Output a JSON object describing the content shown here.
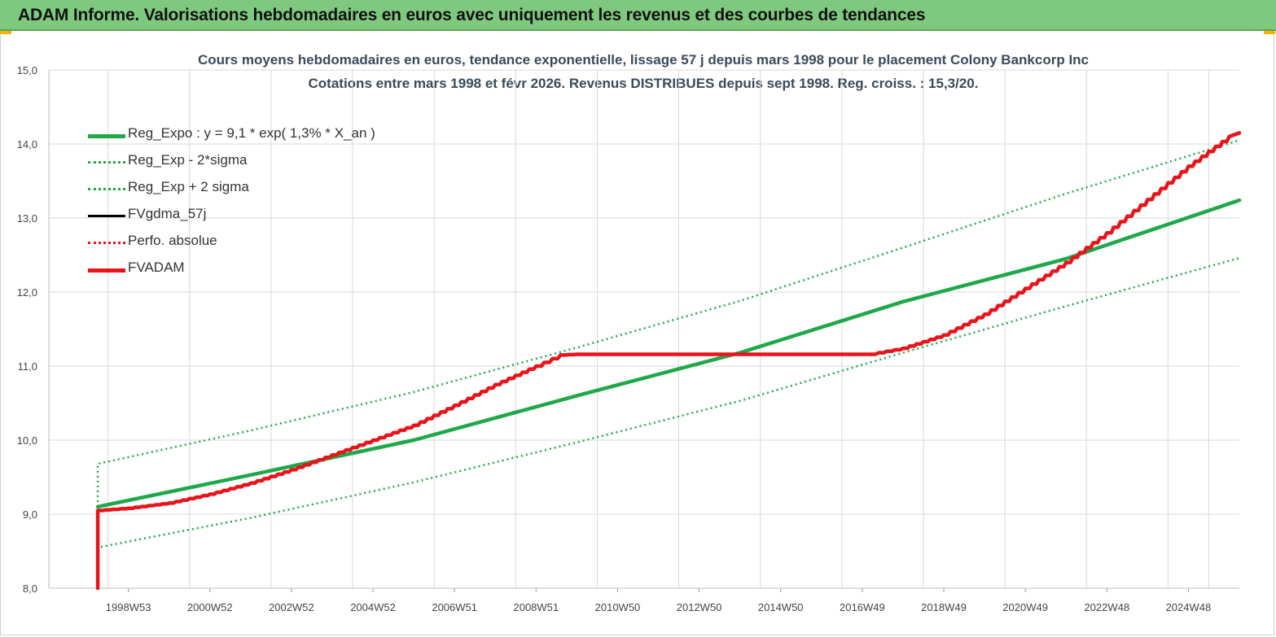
{
  "header": {
    "title": "ADAM Informe. Valorisations hebdomadaires en euros avec uniquement les revenus et des courbes de tendances"
  },
  "colors": {
    "header_bg": "#7fc97f",
    "reg_green": "#1fa84a",
    "dotted_green": "#1fa84a",
    "fvadam_red": "#e8141b",
    "perfo_red": "#e8141b",
    "fvgdma_black": "#000000",
    "grid": "#d9d9d9"
  },
  "chart_data": {
    "type": "line",
    "title": "Cours moyens hebdomadaires en euros, tendance exponentielle, lissage 57 j depuis mars 1998 pour le placement Colony Bankcorp Inc",
    "subtitle": "Cotations entre mars 1998 et févr 2026. Revenus DISTRIBUES depuis sept 1998. Reg. croiss. : 15,3/20.",
    "xlabel": "",
    "ylabel": "",
    "ylim": [
      8.0,
      15.0
    ],
    "xlim": [
      1996.05,
      2025.25
    ],
    "yticks": [
      "8,0",
      "9,0",
      "10,0",
      "11,0",
      "12,0",
      "13,0",
      "14,0",
      "15,0"
    ],
    "xticks": [
      {
        "label": "1998W53",
        "x": 1998.0
      },
      {
        "label": "2000W52",
        "x": 2000.0
      },
      {
        "label": "2002W52",
        "x": 2002.0
      },
      {
        "label": "2004W52",
        "x": 2004.0
      },
      {
        "label": "2006W51",
        "x": 2006.0
      },
      {
        "label": "2008W51",
        "x": 2008.0
      },
      {
        "label": "2010W50",
        "x": 2010.0
      },
      {
        "label": "2012W50",
        "x": 2012.0
      },
      {
        "label": "2014W50",
        "x": 2014.0
      },
      {
        "label": "2016W49",
        "x": 2016.0
      },
      {
        "label": "2018W49",
        "x": 2018.0
      },
      {
        "label": "2020W49",
        "x": 2020.0
      },
      {
        "label": "2022W48",
        "x": 2022.0
      },
      {
        "label": "2024W48",
        "x": 2024.0
      }
    ],
    "grid": true,
    "legend_position": "top-left",
    "series": [
      {
        "name": "Reg_Expo : y = 9,1 * exp( 1,3% *  X_an )",
        "style": "solid-thick",
        "color": "#1fa84a",
        "x": [
          1997.25,
          2001.0,
          2005.0,
          2009.0,
          2013.0,
          2017.0,
          2021.0,
          2025.25
        ],
        "y": [
          9.1,
          9.53,
          10.0,
          10.6,
          11.18,
          11.87,
          12.45,
          13.24
        ]
      },
      {
        "name": "Reg_Exp - 2*sigma",
        "style": "dotted",
        "color": "#1fa84a",
        "x": [
          1997.25,
          1997.25,
          2001.0,
          2005.0,
          2009.0,
          2013.0,
          2017.0,
          2021.0,
          2025.25
        ],
        "y": [
          9.1,
          8.55,
          8.95,
          9.43,
          9.97,
          10.53,
          11.18,
          11.81,
          12.46
        ]
      },
      {
        "name": "Reg_Exp + 2 sigma",
        "style": "dotted",
        "color": "#1fa84a",
        "x": [
          1997.25,
          1997.25,
          2001.0,
          2005.0,
          2009.0,
          2013.0,
          2017.0,
          2021.0,
          2025.25
        ],
        "y": [
          9.1,
          9.68,
          10.13,
          10.65,
          11.25,
          11.88,
          12.6,
          13.33,
          14.05
        ]
      },
      {
        "name": "FVgdma_57j",
        "style": "solid",
        "color": "#000000",
        "x": [],
        "y": []
      },
      {
        "name": "Perfo. absolue",
        "style": "dotted",
        "color": "#e8141b",
        "x": [],
        "y": []
      },
      {
        "name": "FVADAM",
        "style": "solid-thick",
        "color": "#e8141b",
        "x": [
          1997.25,
          1997.25,
          1998.0,
          1999.0,
          2000.0,
          2001.0,
          2002.0,
          2003.0,
          2004.0,
          2005.0,
          2006.0,
          2007.0,
          2008.0,
          2008.6,
          2009.0,
          2012.0,
          2016.2,
          2017.0,
          2018.0,
          2019.0,
          2020.0,
          2021.0,
          2022.0,
          2023.0,
          2024.0,
          2025.0,
          2025.25
        ],
        "y": [
          8.0,
          9.05,
          9.08,
          9.15,
          9.27,
          9.42,
          9.6,
          9.8,
          10.0,
          10.2,
          10.47,
          10.75,
          11.0,
          11.15,
          11.16,
          11.16,
          11.16,
          11.24,
          11.42,
          11.7,
          12.05,
          12.4,
          12.8,
          13.25,
          13.7,
          14.1,
          14.15
        ]
      }
    ]
  }
}
